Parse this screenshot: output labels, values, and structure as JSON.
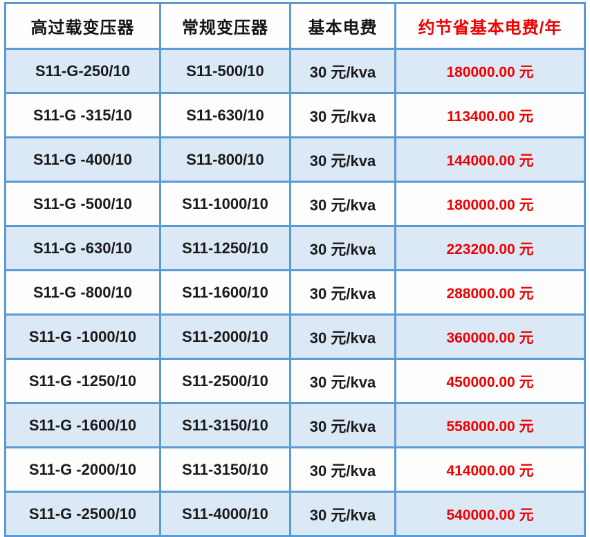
{
  "chart_data": {
    "type": "table",
    "title": "",
    "columns": [
      "高过载变压器",
      "常规变压器",
      "基本电费",
      "约节省基本电费/年"
    ],
    "rows": [
      [
        "S11-G-250/10",
        "S11-500/10",
        "30 元/kva",
        "180000.00 元"
      ],
      [
        "S11-G -315/10",
        "S11-630/10",
        "30 元/kva",
        "113400.00 元"
      ],
      [
        "S11-G -400/10",
        "S11-800/10",
        "30 元/kva",
        "144000.00 元"
      ],
      [
        "S11-G -500/10",
        "S11-1000/10",
        "30 元/kva",
        "180000.00 元"
      ],
      [
        "S11-G -630/10",
        "S11-1250/10",
        "30 元/kva",
        "223200.00 元"
      ],
      [
        "S11-G -800/10",
        "S11-1600/10",
        "30 元/kva",
        "288000.00 元"
      ],
      [
        "S11-G -1000/10",
        "S11-2000/10",
        "30 元/kva",
        "360000.00 元"
      ],
      [
        "S11-G -1250/10",
        "S11-2500/10",
        "30 元/kva",
        "450000.00 元"
      ],
      [
        "S11-G -1600/10",
        "S11-3150/10",
        "30 元/kva",
        "558000.00 元"
      ],
      [
        "S11-G -2000/10",
        "S11-3150/10",
        "30 元/kva",
        "414000.00 元"
      ],
      [
        "S11-G -2500/10",
        "S11-4000/10",
        "30 元/kva",
        "540000.00 元"
      ]
    ],
    "annual_saving_values_yuan": [
      180000.0,
      113400.0,
      144000.0,
      180000.0,
      223200.0,
      288000.0,
      360000.0,
      450000.0,
      558000.0,
      414000.0,
      540000.0
    ],
    "basic_fee_rate": "30 元/kva",
    "layout_hints": {
      "grid": "on",
      "header_row_background": "#fefefe",
      "alternating_row_backgrounds": [
        "#dbe8f5",
        "#fdfdfd"
      ]
    }
  },
  "colors": {
    "border_blue": "#5b9bd5",
    "row_alt_blue": "#dbe8f5",
    "row_alt_white": "#fdfdfd",
    "accent_red": "#ee0000",
    "text_black": "#1a1a1a"
  }
}
